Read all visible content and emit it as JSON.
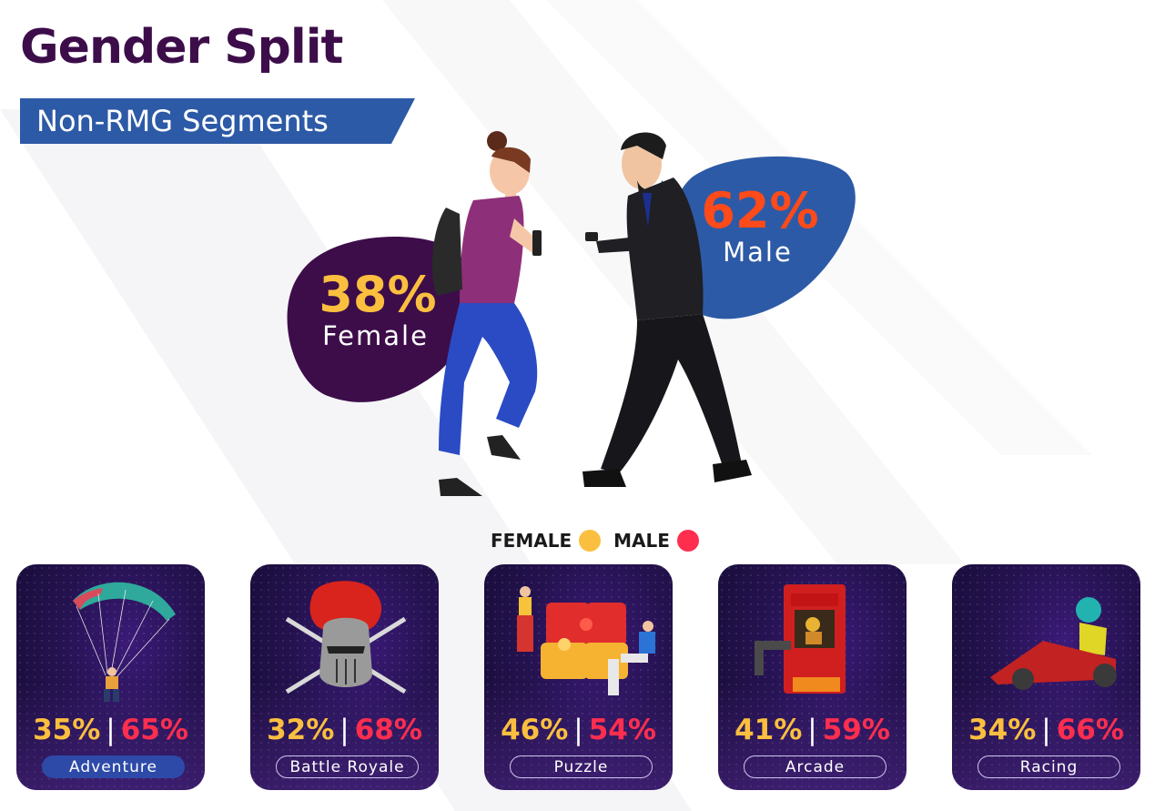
{
  "header": {
    "title": "Gender Split",
    "subtitle": "Non-RMG Segments"
  },
  "overall": {
    "female_pct": "38%",
    "female_label": "Female",
    "male_pct": "62%",
    "male_label": "Male"
  },
  "legend": {
    "female": "FEMALE",
    "male": "MALE"
  },
  "segments": [
    {
      "name": "Adventure",
      "female": "35%",
      "male": "65%",
      "active": true
    },
    {
      "name": "Battle Royale",
      "female": "32%",
      "male": "68%",
      "active": false
    },
    {
      "name": "Puzzle",
      "female": "46%",
      "male": "54%",
      "active": false
    },
    {
      "name": "Arcade",
      "female": "41%",
      "male": "59%",
      "active": false
    },
    {
      "name": "Racing",
      "female": "34%",
      "male": "66%",
      "active": false
    }
  ],
  "colors": {
    "title": "#3d0d4a",
    "subtitle_bg": "#2d5aa6",
    "female_blob": "#3d0d4a",
    "male_blob": "#2d5aa6",
    "female": "#fbbf3f",
    "male": "#ff2e4e",
    "male_overall": "#ff4a1a",
    "card_bg": "#24124f"
  },
  "chart_data": {
    "type": "bar",
    "title": "Gender Split",
    "subtitle": "Non-RMG Segments",
    "overall": {
      "Female": 38,
      "Male": 62
    },
    "categories": [
      "Adventure",
      "Battle Royale",
      "Puzzle",
      "Arcade",
      "Racing"
    ],
    "series": [
      {
        "name": "FEMALE",
        "values": [
          35,
          32,
          46,
          41,
          34
        ]
      },
      {
        "name": "MALE",
        "values": [
          65,
          68,
          54,
          59,
          66
        ]
      }
    ],
    "legend": "top-center"
  }
}
